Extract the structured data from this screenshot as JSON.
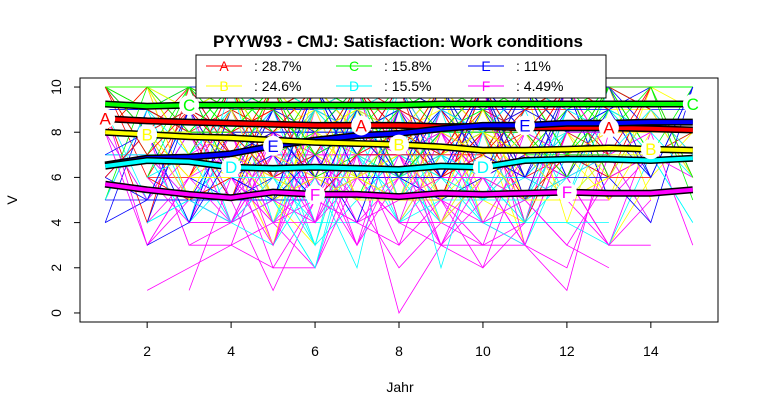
{
  "chart_data": {
    "type": "line",
    "title": "PYYW93 - CMJ: Satisfaction: Work conditions",
    "xlabel": "Jahr",
    "ylabel": "V",
    "xlim": [
      0.4,
      15.6
    ],
    "ylim": [
      -0.4,
      10.4
    ],
    "x_ticks": [
      2,
      4,
      6,
      8,
      10,
      12,
      14
    ],
    "y_ticks": [
      0,
      2,
      4,
      6,
      8,
      10
    ],
    "x": [
      1,
      2,
      3,
      4,
      5,
      6,
      7,
      8,
      9,
      10,
      11,
      12,
      13,
      14,
      15
    ],
    "legend_position": "top",
    "series": [
      {
        "name": "A",
        "share": "28.7%",
        "color": "#ff0000",
        "values": [
          8.6,
          8.5,
          8.45,
          8.4,
          8.35,
          8.3,
          8.3,
          8.3,
          8.25,
          8.25,
          8.2,
          8.2,
          8.2,
          8.15,
          8.1
        ],
        "marker_x": [
          1,
          13,
          7.1
        ]
      },
      {
        "name": "B",
        "share": "24.6%",
        "color": "#ffff00",
        "values": [
          8.0,
          7.9,
          7.8,
          7.75,
          7.65,
          7.55,
          7.5,
          7.45,
          7.35,
          7.2,
          7.2,
          7.25,
          7.3,
          7.25,
          7.2
        ],
        "marker_x": [
          2,
          8,
          14
        ]
      },
      {
        "name": "C",
        "share": "15.8%",
        "color": "#00ff00",
        "values": [
          9.25,
          9.15,
          9.2,
          9.2,
          9.2,
          9.2,
          9.2,
          9.2,
          9.25,
          9.25,
          9.25,
          9.25,
          9.25,
          9.25,
          9.25
        ],
        "marker_x": [
          3,
          15
        ]
      },
      {
        "name": "D",
        "share": "15.5%",
        "color": "#00ffff",
        "values": [
          6.5,
          6.75,
          6.7,
          6.45,
          6.4,
          6.45,
          6.4,
          6.35,
          6.5,
          6.45,
          6.75,
          6.8,
          6.8,
          6.75,
          6.85
        ],
        "marker_x": [
          4,
          10
        ]
      },
      {
        "name": "E",
        "share": "11%",
        "color": "#0000ff",
        "values": [
          6.55,
          6.85,
          6.9,
          7.05,
          7.4,
          7.65,
          7.85,
          7.95,
          8.15,
          8.3,
          8.3,
          8.4,
          8.4,
          8.45,
          8.45
        ],
        "marker_x": [
          5,
          11
        ]
      },
      {
        "name": "F",
        "share": "4.49%",
        "color": "#ff00ff",
        "values": [
          5.7,
          5.45,
          5.25,
          5.1,
          5.35,
          5.25,
          5.25,
          5.15,
          5.3,
          5.25,
          5.3,
          5.35,
          5.3,
          5.3,
          5.45
        ],
        "marker_x": [
          6,
          12
        ]
      }
    ],
    "legend_layout": [
      [
        "A",
        "C",
        "E"
      ],
      [
        "B",
        "D",
        "F"
      ]
    ],
    "background_lines": {
      "count": 140,
      "value_range": [
        0,
        10
      ],
      "integer_values": true
    }
  }
}
